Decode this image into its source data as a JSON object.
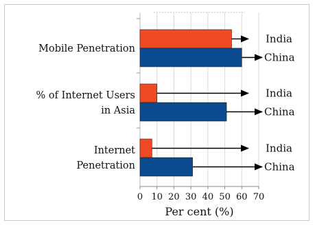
{
  "chart_data": {
    "type": "bar",
    "orientation": "horizontal",
    "categories": [
      "Mobile Penetration",
      "% of Internet Users in Asia",
      "Internet Penetration"
    ],
    "category_lines": [
      [
        "Mobile Penetration"
      ],
      [
        "% of Internet Users",
        "in Asia"
      ],
      [
        "Internet",
        "Penetration"
      ]
    ],
    "series": [
      {
        "name": "India",
        "values": [
          54,
          10,
          7
        ],
        "color": "#f04a25"
      },
      {
        "name": "China",
        "values": [
          60,
          51,
          31
        ],
        "color": "#0b4a8f"
      }
    ],
    "xlabel": "Per cent (%)",
    "xlim": [
      0,
      70
    ],
    "xticks": [
      0,
      10,
      20,
      30,
      40,
      50,
      60,
      70
    ],
    "grid": "vertical",
    "grid_color": "#d9d9d9",
    "annotations": "arrows point from each bar to its series label"
  }
}
